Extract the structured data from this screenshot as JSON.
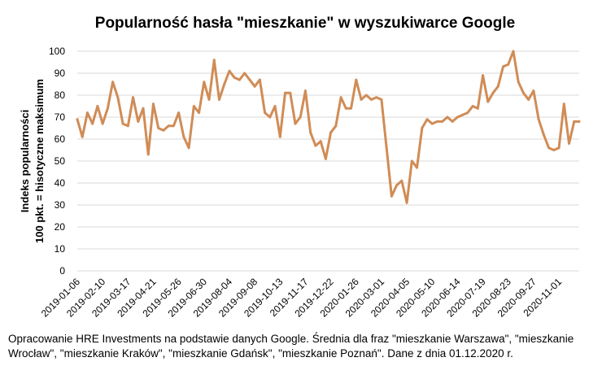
{
  "chart_data": {
    "type": "line",
    "title": "Popularność hasła \"mieszkanie\" w wyszukiwarce Google",
    "ylabel_lines": [
      "Indeks popularności",
      "100 pkt. = hisotyczne maksimum"
    ],
    "xlabel": "",
    "ylim": [
      0,
      100
    ],
    "yticks": [
      0,
      10,
      20,
      30,
      40,
      50,
      60,
      70,
      80,
      90,
      100
    ],
    "grid": true,
    "legend": "none",
    "line_color": "#d08c56",
    "x_tick_labels": [
      "2019-01-06",
      "2019-02-10",
      "2019-03-17",
      "2019-04-21",
      "2019-05-26",
      "2019-06-30",
      "2019-08-04",
      "2019-09-08",
      "2019-10-13",
      "2019-11-17",
      "2019-12-22",
      "2020-01-26",
      "2020-03-01",
      "2020-04-05",
      "2020-05-10",
      "2020-06-14",
      "2020-07-19",
      "2020-08-23",
      "2020-09-27",
      "2020-11-01"
    ],
    "x": [
      "2019-01-06",
      "2019-01-13",
      "2019-01-20",
      "2019-01-27",
      "2019-02-03",
      "2019-02-10",
      "2019-02-17",
      "2019-02-24",
      "2019-03-03",
      "2019-03-10",
      "2019-03-17",
      "2019-03-24",
      "2019-03-31",
      "2019-04-07",
      "2019-04-14",
      "2019-04-21",
      "2019-04-28",
      "2019-05-05",
      "2019-05-12",
      "2019-05-19",
      "2019-05-26",
      "2019-06-02",
      "2019-06-09",
      "2019-06-16",
      "2019-06-23",
      "2019-06-30",
      "2019-07-07",
      "2019-07-14",
      "2019-07-21",
      "2019-07-28",
      "2019-08-04",
      "2019-08-11",
      "2019-08-18",
      "2019-08-25",
      "2019-09-01",
      "2019-09-08",
      "2019-09-15",
      "2019-09-22",
      "2019-09-29",
      "2019-10-06",
      "2019-10-13",
      "2019-10-20",
      "2019-10-27",
      "2019-11-03",
      "2019-11-10",
      "2019-11-17",
      "2019-11-24",
      "2019-12-01",
      "2019-12-08",
      "2019-12-15",
      "2019-12-22",
      "2019-12-29",
      "2020-01-05",
      "2020-01-12",
      "2020-01-19",
      "2020-01-26",
      "2020-02-02",
      "2020-02-09",
      "2020-02-16",
      "2020-02-23",
      "2020-03-01",
      "2020-03-08",
      "2020-03-15",
      "2020-03-22",
      "2020-03-29",
      "2020-04-05",
      "2020-04-12",
      "2020-04-19",
      "2020-04-26",
      "2020-05-03",
      "2020-05-10",
      "2020-05-17",
      "2020-05-24",
      "2020-05-31",
      "2020-06-07",
      "2020-06-14",
      "2020-06-21",
      "2020-06-28",
      "2020-07-05",
      "2020-07-12",
      "2020-07-19",
      "2020-07-26",
      "2020-08-02",
      "2020-08-09",
      "2020-08-16",
      "2020-08-23",
      "2020-08-30",
      "2020-09-06",
      "2020-09-13",
      "2020-09-20",
      "2020-09-27",
      "2020-10-04",
      "2020-10-11",
      "2020-10-18",
      "2020-10-25",
      "2020-11-01",
      "2020-11-08",
      "2020-11-15",
      "2020-11-22",
      "2020-11-29"
    ],
    "series": [
      {
        "values": [
          69,
          61,
          72,
          67,
          75,
          67,
          74,
          86,
          79,
          67,
          66,
          79,
          68,
          74,
          53,
          76,
          65,
          64,
          66,
          66,
          72,
          61,
          56,
          75,
          72,
          86,
          78,
          96,
          78,
          85,
          91,
          88,
          87,
          90,
          87,
          84,
          87,
          72,
          70,
          75,
          61,
          81,
          81,
          67,
          70,
          82,
          63,
          57,
          59,
          51,
          63,
          66,
          79,
          74,
          74,
          87,
          78,
          80,
          78,
          79,
          78,
          56,
          34,
          39,
          41,
          31,
          50,
          47,
          65,
          69,
          67,
          68,
          68,
          70,
          68,
          70,
          71,
          72,
          75,
          74,
          89,
          77,
          81,
          84,
          93,
          94,
          100,
          86,
          81,
          78,
          82,
          69,
          62,
          56,
          55,
          56,
          76,
          58,
          68,
          68
        ]
      }
    ]
  },
  "footnote": "Opracowanie HRE Investments na podstawie danych Google. Średnia dla fraz \"mieszkanie Warszawa\", \"mieszkanie Wrocław\", \"mieszkanie Kraków\", \"mieszkanie Gdańsk\", \"mieszkanie Poznań\". Dane z dnia 01.12.2020 r."
}
